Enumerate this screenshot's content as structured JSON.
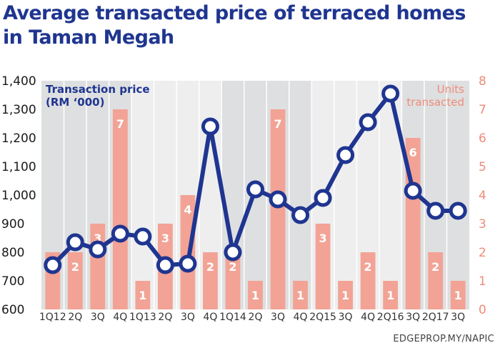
{
  "title_line1": "Average transacted price of terraced homes",
  "title_line2": "in Taman Megah",
  "source": "EDGEPROP.MY/NAPIC",
  "chart_data": {
    "type": "bar+line",
    "categories": [
      "1Q12",
      "2Q",
      "3Q",
      "4Q",
      "1Q13",
      "2Q",
      "3Q",
      "4Q",
      "1Q14",
      "2Q",
      "3Q",
      "4Q",
      "2Q15",
      "3Q",
      "4Q",
      "2Q16",
      "3Q",
      "2Q17",
      "3Q"
    ],
    "series": [
      {
        "name": "Units transacted",
        "label_lines": [
          "Units",
          "transacted"
        ],
        "type": "bar",
        "axis": "right",
        "color": "#f2a395",
        "values": [
          2,
          2,
          3,
          7,
          1,
          3,
          4,
          2,
          2,
          1,
          7,
          1,
          3,
          1,
          2,
          1,
          6,
          2,
          1
        ]
      },
      {
        "name": "Transaction price (RM '000)",
        "label_lines": [
          "Transaction price",
          "(RM ‘000)"
        ],
        "type": "line",
        "axis": "left",
        "color": "#1f3590",
        "values": [
          755,
          835,
          810,
          865,
          855,
          755,
          760,
          1240,
          800,
          1020,
          985,
          930,
          990,
          1140,
          1255,
          1355,
          1015,
          945,
          945
        ]
      }
    ],
    "y_left": {
      "min": 600,
      "max": 1400,
      "ticks": [
        "600",
        "700",
        "800",
        "900",
        "1,000",
        "1,100",
        "1,200",
        "1,300",
        "1,400"
      ]
    },
    "y_right": {
      "min": 0,
      "max": 8,
      "ticks": [
        "0",
        "1",
        "2",
        "3",
        "4",
        "5",
        "6",
        "7",
        "8"
      ]
    },
    "year_bands": [
      "2012",
      "2013",
      "2014",
      "2015",
      "2016",
      "2017"
    ],
    "colors": {
      "band_dark": "#dedfe0",
      "band_light": "#eeeeef",
      "right_axis": "#ee8c78"
    }
  }
}
